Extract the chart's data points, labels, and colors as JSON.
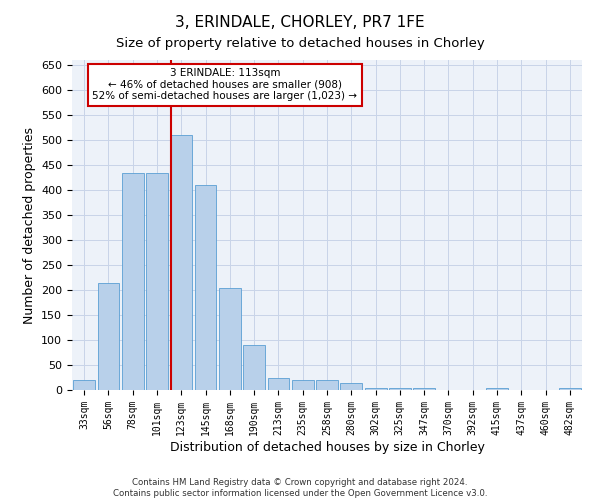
{
  "title": "3, ERINDALE, CHORLEY, PR7 1FE",
  "subtitle": "Size of property relative to detached houses in Chorley",
  "xlabel": "Distribution of detached houses by size in Chorley",
  "ylabel": "Number of detached properties",
  "footer_line1": "Contains HM Land Registry data © Crown copyright and database right 2024.",
  "footer_line2": "Contains public sector information licensed under the Open Government Licence v3.0.",
  "annotation_line1": "3 ERINDALE: 113sqm",
  "annotation_line2": "← 46% of detached houses are smaller (908)",
  "annotation_line3": "52% of semi-detached houses are larger (1,023) →",
  "bar_categories": [
    "33sqm",
    "56sqm",
    "78sqm",
    "101sqm",
    "123sqm",
    "145sqm",
    "168sqm",
    "190sqm",
    "213sqm",
    "235sqm",
    "258sqm",
    "280sqm",
    "302sqm",
    "325sqm",
    "347sqm",
    "370sqm",
    "392sqm",
    "415sqm",
    "437sqm",
    "460sqm",
    "482sqm"
  ],
  "bar_values": [
    20,
    215,
    435,
    435,
    510,
    410,
    205,
    90,
    25,
    20,
    20,
    15,
    5,
    5,
    5,
    0,
    0,
    5,
    0,
    0,
    5
  ],
  "bar_color": "#b8d0ea",
  "bar_edge_color": "#5a9fd4",
  "vline_color": "#cc0000",
  "grid_color": "#c8d4e8",
  "bg_color": "#edf2f9",
  "annotation_box_color": "#ffffff",
  "annotation_box_edge": "#cc0000",
  "ylim": [
    0,
    660
  ],
  "yticks": [
    0,
    50,
    100,
    150,
    200,
    250,
    300,
    350,
    400,
    450,
    500,
    550,
    600,
    650
  ],
  "vline_x": 3.575,
  "title_fontsize": 11,
  "subtitle_fontsize": 10
}
